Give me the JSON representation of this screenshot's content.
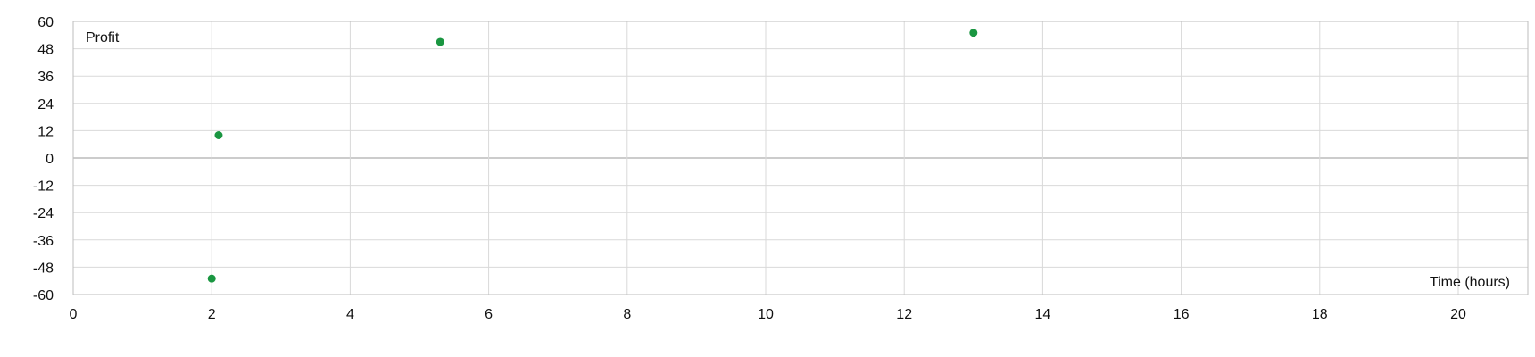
{
  "chart_data": {
    "type": "scatter",
    "title": "",
    "xlabel": "Time (hours)",
    "ylabel": "Profit",
    "xlim": [
      0,
      20
    ],
    "ylim": [
      -60,
      60
    ],
    "x_ticks": [
      0,
      2,
      4,
      6,
      8,
      10,
      12,
      14,
      16,
      18,
      20
    ],
    "y_ticks": [
      60,
      48,
      36,
      24,
      12,
      0,
      -12,
      -24,
      -36,
      -48,
      -60
    ],
    "grid": true,
    "legend": "none",
    "series": [
      {
        "color": "#1a9641",
        "points": [
          {
            "x": 2.0,
            "y": -53
          },
          {
            "x": 2.1,
            "y": 10
          },
          {
            "x": 5.3,
            "y": 51
          },
          {
            "x": 13.0,
            "y": 55
          }
        ]
      }
    ]
  }
}
